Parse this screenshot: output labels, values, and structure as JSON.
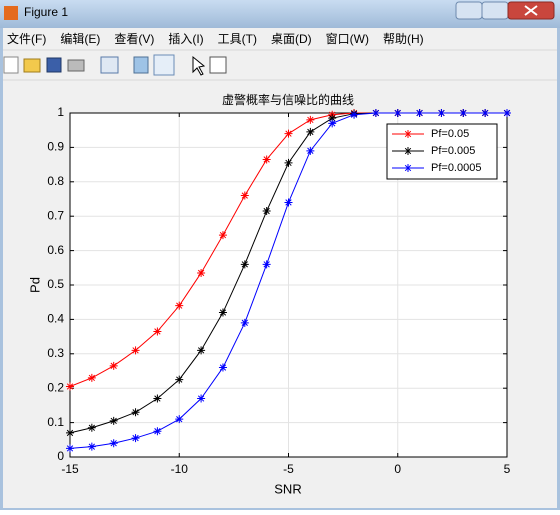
{
  "window": {
    "title": "Figure 1",
    "menus": [
      "文件(F)",
      "编辑(E)",
      "查看(V)",
      "插入(I)",
      "工具(T)",
      "桌面(D)",
      "窗口(W)",
      "帮助(H)"
    ]
  },
  "chart_data": {
    "type": "line",
    "title": "虚警概率与信噪比的曲线",
    "x_label": "SNR",
    "y_label": "Pd",
    "x": [
      -15,
      -14,
      -13,
      -12,
      -11,
      -10,
      -9,
      -8,
      -7,
      -6,
      -5,
      -4,
      -3,
      -2,
      -1,
      0,
      1,
      2,
      3,
      4,
      5
    ],
    "series": [
      {
        "name": "Pf=0.05",
        "color": "#ff0000",
        "values": [
          0.205,
          0.23,
          0.265,
          0.31,
          0.365,
          0.44,
          0.535,
          0.645,
          0.76,
          0.865,
          0.94,
          0.98,
          0.995,
          1,
          1,
          1,
          1,
          1,
          1,
          1,
          1
        ]
      },
      {
        "name": "Pf=0.005",
        "color": "#000000",
        "values": [
          0.07,
          0.085,
          0.105,
          0.13,
          0.17,
          0.225,
          0.31,
          0.42,
          0.56,
          0.715,
          0.855,
          0.945,
          0.985,
          0.998,
          1,
          1,
          1,
          1,
          1,
          1,
          1
        ]
      },
      {
        "name": "Pf=0.0005",
        "color": "#0000ff",
        "values": [
          0.025,
          0.03,
          0.04,
          0.055,
          0.075,
          0.11,
          0.17,
          0.26,
          0.39,
          0.56,
          0.74,
          0.89,
          0.97,
          0.995,
          1,
          1,
          1,
          1,
          1,
          1,
          1
        ]
      }
    ],
    "xlim": [
      -15,
      5
    ],
    "xticks": [
      -15,
      -10,
      -5,
      0,
      5
    ],
    "ylim": [
      0,
      1
    ],
    "yticks": [
      0,
      0.1,
      0.2,
      0.3,
      0.4,
      0.5,
      0.6,
      0.7,
      0.8,
      0.9,
      1
    ],
    "grid": true,
    "legend": "upper right",
    "marker": "*"
  }
}
